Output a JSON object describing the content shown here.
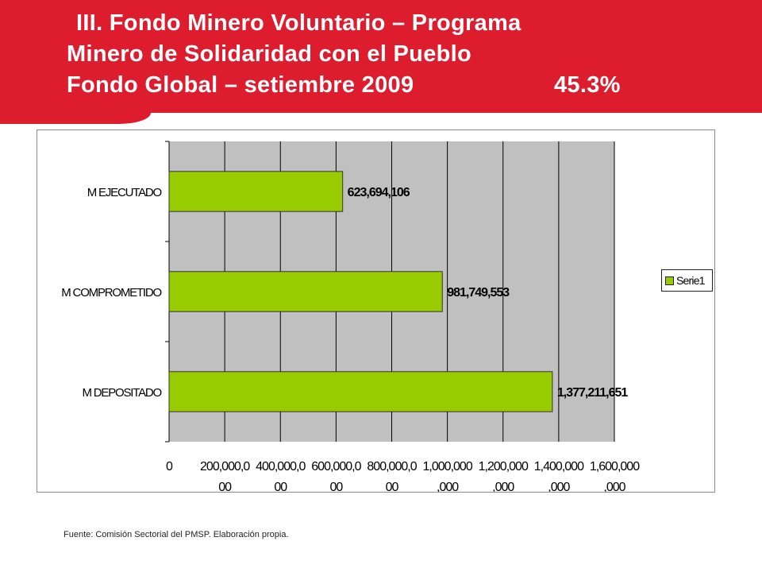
{
  "slide": {
    "title_line1": "III.  Fondo Minero Voluntario – Programa",
    "title_line2": "Minero de Solidaridad con el Pueblo",
    "title_line3": "Fondo Global – setiembre 2009",
    "percentage": "45.3%",
    "source_note": "Fuente: Comisión Sectorial del PMSP. Elaboración propia."
  },
  "colors": {
    "brand_red": "#dd1c2e",
    "bar_fill": "#99cc00",
    "plot_background": "#c0c0c0"
  },
  "chart_data": {
    "type": "bar",
    "orientation": "horizontal",
    "categories": [
      "M EJECUTADO",
      "M COMPROMETIDO",
      "M DEPOSITADO"
    ],
    "series": [
      {
        "name": "Serie1",
        "values": [
          623694106,
          981749553,
          1377211651
        ],
        "labels": [
          "623,694,106",
          "981,749,553",
          "1,377,211,651"
        ]
      }
    ],
    "xlim": [
      0,
      1600000000
    ],
    "x_tick_labels": [
      [
        "0",
        ""
      ],
      [
        "200,000,0",
        "00"
      ],
      [
        "400,000,0",
        "00"
      ],
      [
        "600,000,0",
        "00"
      ],
      [
        "800,000,0",
        "00"
      ],
      [
        "1,000,000",
        ",000"
      ],
      [
        "1,200,000",
        ",000"
      ],
      [
        "1,400,000",
        ",000"
      ],
      [
        "1,600,000",
        ",000"
      ]
    ],
    "grid": true,
    "legend_position": "right"
  }
}
